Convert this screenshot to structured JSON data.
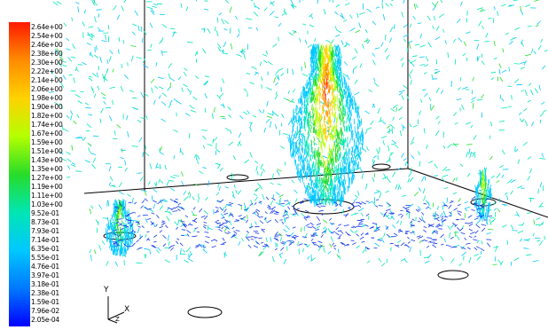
{
  "colorbar": {
    "labels": [
      "2.64e+00",
      "2.54e+00",
      "2.46e+00",
      "2.38e+00",
      "2.30e+00",
      "2.22e+00",
      "2.14e+00",
      "2.06e+00",
      "1.98e+00",
      "1.90e+00",
      "1.82e+00",
      "1.74e+00",
      "1.67e+00",
      "1.59e+00",
      "1.51e+00",
      "1.43e+00",
      "1.35e+00",
      "1.27e+00",
      "1.19e+00",
      "1.11e+00",
      "1.03e+00",
      "9.52e-01",
      "8.73e-01",
      "7.93e-01",
      "7.14e-01",
      "6.35e-01",
      "5.55e-01",
      "4.76e-01",
      "3.97e-01",
      "3.18e-01",
      "2.38e-01",
      "1.59e-01",
      "7.96e-02",
      "2.05e-04"
    ],
    "colors": [
      "#ff1a00",
      "#ff8c00",
      "#ffd200",
      "#b4ff00",
      "#28dc28",
      "#00e6b4",
      "#00c8ff",
      "#0078ff",
      "#0000ff"
    ]
  },
  "axis_triad": {
    "y_label": "Y",
    "x_label": "X",
    "z_label": "Z"
  }
}
